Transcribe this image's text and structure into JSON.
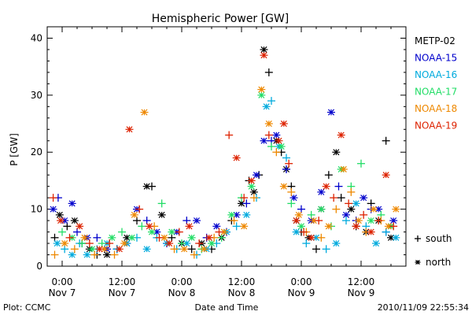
{
  "chart_data": {
    "type": "scatter",
    "title": "Hemispheric Power [GW]",
    "ylabel": "P [GW]",
    "xlabel": "Date and Time",
    "ylim": [
      0,
      42
    ],
    "yticks": [
      0,
      10,
      20,
      30,
      40
    ],
    "xlim_hours": [
      -3,
      69
    ],
    "xticks": [
      {
        "h": 0,
        "time": "0:00",
        "date": "Nov 7"
      },
      {
        "h": 12,
        "time": "12:00",
        "date": "Nov 7"
      },
      {
        "h": 24,
        "time": "0:00",
        "date": "Nov 8"
      },
      {
        "h": 36,
        "time": "12:00",
        "date": "Nov 8"
      },
      {
        "h": 48,
        "time": "0:00",
        "date": "Nov 9"
      },
      {
        "h": 60,
        "time": "12:00",
        "date": "Nov 9"
      }
    ],
    "grid": false,
    "legend_position": "right",
    "marker_legend": [
      {
        "symbol": "+",
        "label": "south"
      },
      {
        "symbol": "*",
        "label": "north"
      }
    ],
    "series": [
      {
        "name": "METP-02",
        "color": "#000000",
        "points": [
          [
            -1.5,
            5,
            "s"
          ],
          [
            -0.5,
            9,
            "n"
          ],
          [
            1,
            7,
            "s"
          ],
          [
            2.5,
            8,
            "n"
          ],
          [
            4,
            4,
            "s"
          ],
          [
            5.5,
            3,
            "n"
          ],
          [
            7,
            2,
            "s"
          ],
          [
            9,
            2,
            "n"
          ],
          [
            11,
            3,
            "s"
          ],
          [
            13,
            5,
            "n"
          ],
          [
            15,
            8,
            "s"
          ],
          [
            17,
            14,
            "n"
          ],
          [
            18,
            14,
            "s"
          ],
          [
            20,
            9,
            "n"
          ],
          [
            22,
            5,
            "s"
          ],
          [
            24,
            4,
            "n"
          ],
          [
            26,
            3,
            "s"
          ],
          [
            28,
            4,
            "n"
          ],
          [
            30,
            3,
            "s"
          ],
          [
            32,
            5,
            "n"
          ],
          [
            34,
            8,
            "s"
          ],
          [
            36,
            11,
            "n"
          ],
          [
            37.5,
            15,
            "s"
          ],
          [
            38.5,
            13,
            "n"
          ],
          [
            39.5,
            16,
            "s"
          ],
          [
            40.5,
            38,
            "n"
          ],
          [
            41.5,
            34,
            "s"
          ],
          [
            43,
            22,
            "n"
          ],
          [
            44,
            20,
            "s"
          ],
          [
            45,
            17,
            "n"
          ],
          [
            46,
            14,
            "s"
          ],
          [
            47,
            8,
            "n"
          ],
          [
            48,
            6,
            "s"
          ],
          [
            49.5,
            5,
            "n"
          ],
          [
            51,
            3,
            "s"
          ],
          [
            52,
            10,
            "n"
          ],
          [
            53.5,
            16,
            "s"
          ],
          [
            55,
            20,
            "n"
          ],
          [
            56,
            12,
            "s"
          ],
          [
            58,
            10,
            "n"
          ],
          [
            59,
            7,
            "s"
          ],
          [
            61,
            6,
            "n"
          ],
          [
            62,
            11,
            "s"
          ],
          [
            63.5,
            8,
            "n"
          ],
          [
            65,
            22,
            "s"
          ],
          [
            66,
            5,
            "n"
          ]
        ]
      },
      {
        "name": "NOAA-15",
        "color": "#0000cc",
        "points": [
          [
            -1.8,
            10,
            "n"
          ],
          [
            -0.8,
            12,
            "s"
          ],
          [
            0.5,
            8,
            "n"
          ],
          [
            2,
            11,
            "n"
          ],
          [
            3,
            6,
            "s"
          ],
          [
            5,
            5,
            "n"
          ],
          [
            7,
            5,
            "s"
          ],
          [
            9,
            3,
            "n"
          ],
          [
            11,
            3,
            "s"
          ],
          [
            13,
            4,
            "n"
          ],
          [
            15,
            10,
            "n"
          ],
          [
            17,
            8,
            "s"
          ],
          [
            19,
            6,
            "n"
          ],
          [
            21,
            4,
            "s"
          ],
          [
            23,
            6,
            "n"
          ],
          [
            25,
            8,
            "s"
          ],
          [
            27,
            8,
            "n"
          ],
          [
            29,
            5,
            "s"
          ],
          [
            31,
            7,
            "n"
          ],
          [
            33,
            6,
            "s"
          ],
          [
            35,
            9,
            "n"
          ],
          [
            37,
            11,
            "s"
          ],
          [
            39,
            16,
            "n"
          ],
          [
            40.5,
            22,
            "n"
          ],
          [
            42,
            22,
            "s"
          ],
          [
            43,
            23,
            "n"
          ],
          [
            45,
            17,
            "s"
          ],
          [
            46.5,
            12,
            "n"
          ],
          [
            48,
            10,
            "s"
          ],
          [
            50,
            8,
            "n"
          ],
          [
            52,
            13,
            "n"
          ],
          [
            54,
            27,
            "n"
          ],
          [
            55.5,
            14,
            "s"
          ],
          [
            57,
            9,
            "n"
          ],
          [
            59,
            8,
            "s"
          ],
          [
            60.5,
            12,
            "n"
          ],
          [
            62,
            10,
            "s"
          ],
          [
            63.5,
            10,
            "n"
          ],
          [
            65,
            6,
            "s"
          ],
          [
            66.5,
            8,
            "n"
          ]
        ]
      },
      {
        "name": "NOAA-16",
        "color": "#00aadd",
        "points": [
          [
            -1,
            4,
            "n"
          ],
          [
            0.5,
            3,
            "s"
          ],
          [
            2,
            2,
            "n"
          ],
          [
            3.5,
            4,
            "s"
          ],
          [
            5,
            2,
            "n"
          ],
          [
            7,
            3,
            "s"
          ],
          [
            9,
            4,
            "n"
          ],
          [
            11,
            3,
            "s"
          ],
          [
            13,
            4,
            "n"
          ],
          [
            15,
            5,
            "s"
          ],
          [
            17,
            3,
            "n"
          ],
          [
            19,
            5,
            "s"
          ],
          [
            21,
            4,
            "n"
          ],
          [
            23,
            3,
            "s"
          ],
          [
            25,
            4,
            "n"
          ],
          [
            27,
            2,
            "s"
          ],
          [
            29,
            3,
            "n"
          ],
          [
            31,
            4,
            "s"
          ],
          [
            33,
            6,
            "n"
          ],
          [
            35,
            7,
            "s"
          ],
          [
            37,
            9,
            "n"
          ],
          [
            39,
            12,
            "s"
          ],
          [
            41,
            28,
            "n"
          ],
          [
            42,
            29,
            "s"
          ],
          [
            43.5,
            21,
            "n"
          ],
          [
            45,
            19,
            "s"
          ],
          [
            47,
            6,
            "n"
          ],
          [
            49,
            4,
            "s"
          ],
          [
            51,
            5,
            "n"
          ],
          [
            53,
            3,
            "s"
          ],
          [
            55,
            4,
            "n"
          ],
          [
            57,
            8,
            "s"
          ],
          [
            59,
            11,
            "n"
          ],
          [
            61,
            7,
            "s"
          ],
          [
            63,
            4,
            "n"
          ],
          [
            65,
            6,
            "s"
          ],
          [
            67,
            5,
            "n"
          ]
        ]
      },
      {
        "name": "NOAA-17",
        "color": "#22dd66",
        "points": [
          [
            0,
            6,
            "s"
          ],
          [
            2,
            5,
            "n"
          ],
          [
            4,
            4,
            "s"
          ],
          [
            6,
            3,
            "n"
          ],
          [
            8,
            4,
            "s"
          ],
          [
            10,
            5,
            "n"
          ],
          [
            12,
            6,
            "s"
          ],
          [
            14,
            5,
            "n"
          ],
          [
            16,
            7,
            "s"
          ],
          [
            18,
            6,
            "n"
          ],
          [
            20,
            11,
            "s"
          ],
          [
            22,
            6,
            "n"
          ],
          [
            24,
            4,
            "s"
          ],
          [
            26,
            5,
            "n"
          ],
          [
            28,
            3,
            "s"
          ],
          [
            30,
            4,
            "n"
          ],
          [
            32,
            5,
            "s"
          ],
          [
            34,
            9,
            "n"
          ],
          [
            36,
            12,
            "s"
          ],
          [
            38,
            14,
            "n"
          ],
          [
            40,
            30,
            "n"
          ],
          [
            42,
            21,
            "s"
          ],
          [
            44,
            21,
            "n"
          ],
          [
            46,
            11,
            "s"
          ],
          [
            48,
            7,
            "n"
          ],
          [
            50,
            9,
            "s"
          ],
          [
            52,
            10,
            "n"
          ],
          [
            54,
            7,
            "s"
          ],
          [
            56,
            17,
            "n"
          ],
          [
            58,
            14,
            "s"
          ],
          [
            60,
            18,
            "s"
          ],
          [
            62,
            8,
            "n"
          ],
          [
            64,
            9,
            "s"
          ],
          [
            66,
            7,
            "n"
          ]
        ]
      },
      {
        "name": "NOAA-18",
        "color": "#ee8800",
        "points": [
          [
            -1.5,
            2,
            "s"
          ],
          [
            0.5,
            4,
            "n"
          ],
          [
            2.5,
            3,
            "s"
          ],
          [
            4.5,
            5,
            "n"
          ],
          [
            6.5,
            2,
            "s"
          ],
          [
            8.5,
            3,
            "n"
          ],
          [
            10.5,
            2,
            "s"
          ],
          [
            12.5,
            4,
            "n"
          ],
          [
            14.5,
            9,
            "n"
          ],
          [
            16.5,
            27,
            "n"
          ],
          [
            18.5,
            7,
            "s"
          ],
          [
            20.5,
            5,
            "n"
          ],
          [
            22.5,
            3,
            "s"
          ],
          [
            24.5,
            3,
            "n"
          ],
          [
            26.5,
            2,
            "s"
          ],
          [
            28.5,
            3,
            "n"
          ],
          [
            30.5,
            5,
            "s"
          ],
          [
            32.5,
            6,
            "n"
          ],
          [
            34.5,
            8,
            "s"
          ],
          [
            36.5,
            7,
            "n"
          ],
          [
            38.5,
            12,
            "s"
          ],
          [
            40,
            31,
            "n"
          ],
          [
            41.5,
            25,
            "n"
          ],
          [
            43,
            20,
            "s"
          ],
          [
            44.5,
            14,
            "n"
          ],
          [
            46,
            13,
            "s"
          ],
          [
            47.5,
            9,
            "n"
          ],
          [
            49,
            6,
            "s"
          ],
          [
            50.5,
            8,
            "n"
          ],
          [
            52,
            5,
            "s"
          ],
          [
            53.5,
            7,
            "n"
          ],
          [
            55,
            10,
            "s"
          ],
          [
            56.5,
            17,
            "n"
          ],
          [
            58,
            13,
            "s"
          ],
          [
            59.5,
            8,
            "n"
          ],
          [
            61,
            6,
            "s"
          ],
          [
            62.5,
            10,
            "n"
          ],
          [
            64,
            8,
            "s"
          ],
          [
            65.5,
            7,
            "n"
          ],
          [
            67,
            10,
            "n"
          ]
        ]
      },
      {
        "name": "NOAA-19",
        "color": "#dd2200",
        "points": [
          [
            -1.8,
            12,
            "s"
          ],
          [
            -0.3,
            8,
            "n"
          ],
          [
            1.5,
            5,
            "s"
          ],
          [
            3.5,
            7,
            "n"
          ],
          [
            5.5,
            4,
            "s"
          ],
          [
            7.5,
            3,
            "n"
          ],
          [
            9.5,
            4,
            "s"
          ],
          [
            11.5,
            3,
            "n"
          ],
          [
            13.5,
            24,
            "n"
          ],
          [
            15.5,
            10,
            "s"
          ],
          [
            17.5,
            7,
            "n"
          ],
          [
            19.5,
            5,
            "s"
          ],
          [
            21.5,
            4,
            "n"
          ],
          [
            23.5,
            6,
            "s"
          ],
          [
            25.5,
            7,
            "n"
          ],
          [
            27.5,
            4,
            "s"
          ],
          [
            29.5,
            5,
            "n"
          ],
          [
            31.5,
            6,
            "s"
          ],
          [
            33.5,
            23,
            "s"
          ],
          [
            35,
            19,
            "n"
          ],
          [
            36.5,
            12,
            "s"
          ],
          [
            38,
            15,
            "n"
          ],
          [
            40.5,
            37,
            "n"
          ],
          [
            41.5,
            23,
            "s"
          ],
          [
            43.5,
            22,
            "n"
          ],
          [
            44.5,
            25,
            "n"
          ],
          [
            45.5,
            18,
            "s"
          ],
          [
            47,
            8,
            "n"
          ],
          [
            48.5,
            6,
            "s"
          ],
          [
            50,
            5,
            "n"
          ],
          [
            51.5,
            8,
            "s"
          ],
          [
            53,
            14,
            "n"
          ],
          [
            54.5,
            12,
            "s"
          ],
          [
            56,
            23,
            "n"
          ],
          [
            57.5,
            11,
            "s"
          ],
          [
            59,
            7,
            "n"
          ],
          [
            60.5,
            9,
            "s"
          ],
          [
            62,
            6,
            "n"
          ],
          [
            63.5,
            8,
            "s"
          ],
          [
            65,
            16,
            "n"
          ],
          [
            66.5,
            7,
            "s"
          ]
        ]
      }
    ]
  },
  "footer": {
    "left": "Plot: CCMC",
    "center": "Date and Time",
    "right": "2010/11/09 22:55:34"
  }
}
